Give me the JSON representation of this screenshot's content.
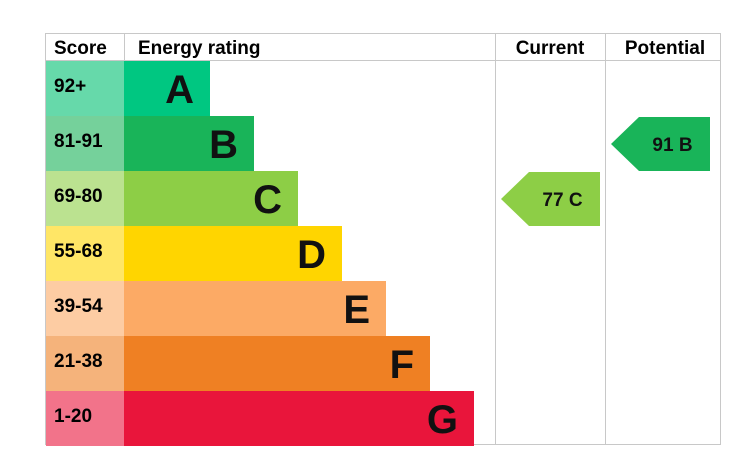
{
  "chart_data": {
    "type": "table",
    "headers": {
      "score": "Score",
      "energy_rating": "Energy rating",
      "current": "Current",
      "potential": "Potential"
    },
    "bands": [
      {
        "letter": "A",
        "range": "92+",
        "color": "#00c781",
        "score_color": "#66d9aa"
      },
      {
        "letter": "B",
        "range": "81-91",
        "color": "#19b459",
        "score_color": "#75d19b"
      },
      {
        "letter": "C",
        "range": "69-80",
        "color": "#8dce46",
        "score_color": "#bbe290"
      },
      {
        "letter": "D",
        "range": "55-68",
        "color": "#ffd500",
        "score_color": "#ffe666"
      },
      {
        "letter": "E",
        "range": "39-54",
        "color": "#fcaa65",
        "score_color": "#fdcca3"
      },
      {
        "letter": "F",
        "range": "21-38",
        "color": "#ef8023",
        "score_color": "#f5b37b"
      },
      {
        "letter": "G",
        "range": "1-20",
        "color": "#e9153b",
        "score_color": "#f2738a"
      }
    ],
    "current": {
      "value": 77,
      "band": "C",
      "label": "77 C",
      "color": "#8dce46"
    },
    "potential": {
      "value": 91,
      "band": "B",
      "label": "91 B",
      "color": "#19b459"
    }
  }
}
